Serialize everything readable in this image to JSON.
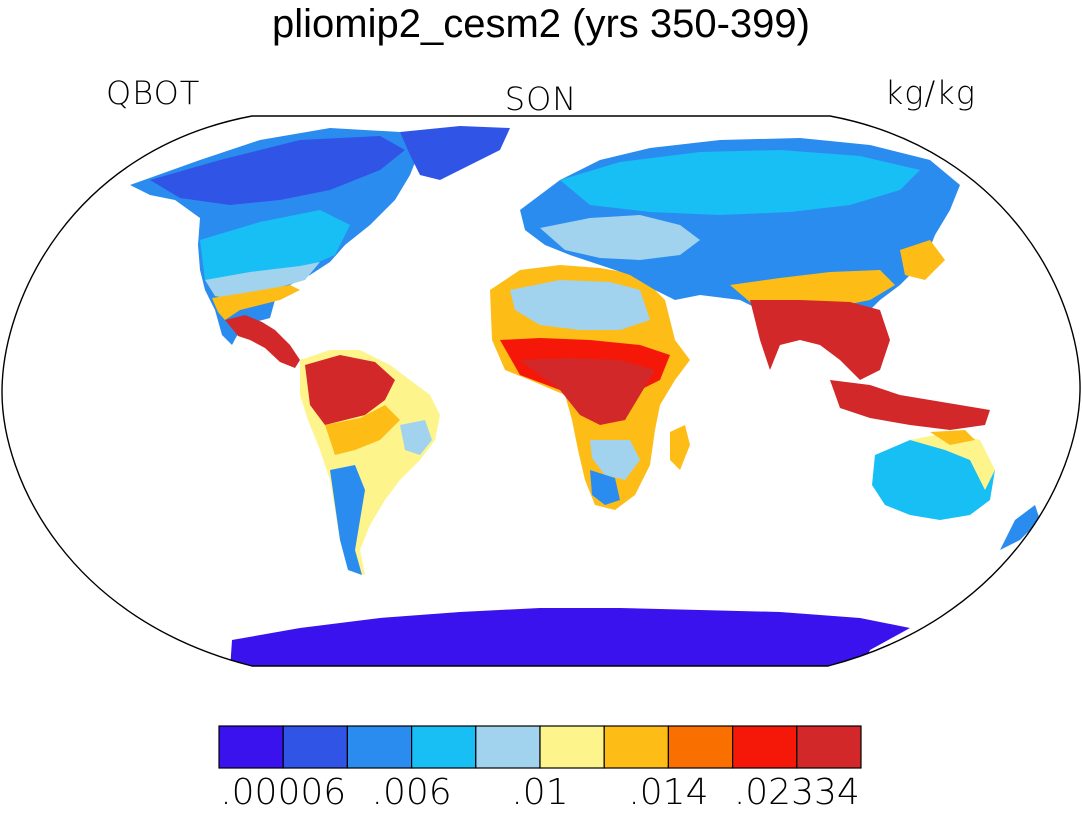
{
  "title": "pliomip2_cesm2 (yrs 350-399)",
  "left_label": "QBOT",
  "center_label": "SON",
  "right_label": "kg/kg",
  "colorbar": {
    "colors": [
      "#3a12ee",
      "#2f54e6",
      "#2b8cf0",
      "#18bff4",
      "#a1d3ef",
      "#fdf48c",
      "#fdbd16",
      "#fa7000",
      "#f51808",
      "#d2282a"
    ],
    "tick_labels": [
      ".00006",
      ".006",
      ".01",
      ".014",
      ".02334"
    ]
  }
}
